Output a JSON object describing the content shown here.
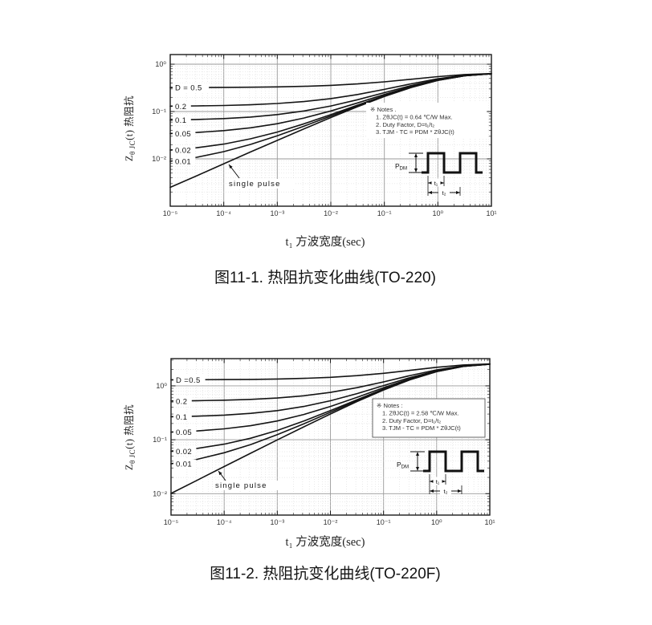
{
  "figures": [
    {
      "caption": "图11-1. 热阻抗变化曲线(TO-220)",
      "x_axis_title": "t₁ 方波宽度(sec)",
      "y_axis_title_prefix": "Z",
      "y_axis_title_sub": "θ JC",
      "y_axis_title_suffix": "(t) 热阻抗"
    },
    {
      "caption": "图11-2. 热阻抗变化曲线(TO-220F)",
      "x_axis_title": "t₁ 方波宽度(sec)",
      "y_axis_title_prefix": "Z",
      "y_axis_title_sub": "θ JC",
      "y_axis_title_suffix": "(t) 热阻抗"
    }
  ],
  "chart_data": [
    {
      "type": "line",
      "title": "图11-1. 热阻抗变化曲线(TO-220)",
      "xlabel": "t₁ 方波宽度(sec)",
      "ylabel": "ZθJC(t) 热阻抗",
      "x_scale": "log",
      "y_scale": "log",
      "xlim": [
        1e-05,
        10
      ],
      "ylim": [
        0.001,
        1.6
      ],
      "grid": true,
      "legend": "inline curve labels at left edge",
      "rth_max_c_per_w": 0.64,
      "x_tick_values": [
        1e-05,
        0.0001,
        0.001,
        0.01,
        0.1,
        1,
        10
      ],
      "x_tick_labels": [
        "10⁻⁵",
        "10⁻⁴",
        "10⁻³",
        "10⁻²",
        "10⁻¹",
        "10⁰",
        "10¹"
      ],
      "y_tick_values": [
        1,
        0.1,
        0.01
      ],
      "y_tick_labels": [
        "10⁰",
        "10⁻¹",
        "10⁻²"
      ],
      "x": [
        1e-05,
        3.16e-05,
        0.0001,
        0.000316,
        0.001,
        0.00316,
        0.01,
        0.0316,
        0.1,
        0.316,
        1,
        3.16,
        10
      ],
      "series": [
        {
          "name": "D = 0.5",
          "duty": 0.5,
          "values": [
            0.3213,
            0.3222,
            0.3239,
            0.327,
            0.3323,
            0.3416,
            0.3573,
            0.3833,
            0.4238,
            0.4807,
            0.5474,
            0.6047,
            0.6337
          ]
        },
        {
          "name": "0.2",
          "duty": 0.2,
          "values": [
            0.13,
            0.1316,
            0.1343,
            0.1392,
            0.1477,
            0.1625,
            0.1877,
            0.2293,
            0.2941,
            0.3851,
            0.4919,
            0.5836,
            0.6299
          ]
        },
        {
          "name": "0.1",
          "duty": 0.1,
          "values": [
            0.0663,
            0.068,
            0.0711,
            0.0766,
            0.0862,
            0.1028,
            0.1312,
            0.178,
            0.2509,
            0.3532,
            0.4734,
            0.5765,
            0.6286
          ]
        },
        {
          "name": "0.05",
          "duty": 0.05,
          "values": [
            0.0344,
            0.0362,
            0.0395,
            0.0453,
            0.0554,
            0.073,
            0.1029,
            0.1523,
            0.2293,
            0.3373,
            0.4641,
            0.573,
            0.628
          ]
        },
        {
          "name": "0.02",
          "duty": 0.02,
          "values": [
            0.0153,
            0.0172,
            0.0205,
            0.0265,
            0.0369,
            0.0551,
            0.086,
            0.1369,
            0.2163,
            0.3277,
            0.4586,
            0.5709,
            0.6276
          ]
        },
        {
          "name": "0.01",
          "duty": 0.01,
          "values": [
            0.0089,
            0.0108,
            0.0142,
            0.0202,
            0.0308,
            0.0491,
            0.0803,
            0.1318,
            0.212,
            0.3245,
            0.4567,
            0.5702,
            0.6274
          ]
        },
        {
          "name": "single pulse",
          "duty": null,
          "values": [
            0.0025,
            0.0044,
            0.0079,
            0.014,
            0.0246,
            0.0431,
            0.0747,
            0.1267,
            0.2077,
            0.3214,
            0.4549,
            0.5695,
            0.6273
          ]
        }
      ],
      "notes": [
        "※  Notes .",
        "1. ZθJC(t) = 0.64 ℃/W Max.",
        "2. Duty Factor, D=t₁/t₂",
        "3. TJM - TC = PDM * ZθJC(t)"
      ],
      "waveform": {
        "amplitude_label": "P",
        "amplitude_sub": "DM",
        "t1_label": "t₁",
        "t2_label": "t₂"
      }
    },
    {
      "type": "line",
      "title": "图11-2. 热阻抗变化曲线(TO-220F)",
      "xlabel": "t₁ 方波宽度(sec)",
      "ylabel": "ZθJC(t) 热阻抗",
      "x_scale": "log",
      "y_scale": "log",
      "xlim": [
        1e-05,
        10
      ],
      "ylim": [
        0.004,
        3.2
      ],
      "grid": true,
      "legend": "inline curve labels at left edge",
      "rth_max_c_per_w": 2.58,
      "x_tick_values": [
        1e-05,
        0.0001,
        0.001,
        0.01,
        0.1,
        1,
        10
      ],
      "x_tick_labels": [
        "10⁻⁵",
        "10⁻⁴",
        "10⁻³",
        "10⁻²",
        "10⁻¹",
        "10⁰",
        "10¹"
      ],
      "y_tick_values": [
        1,
        0.1,
        0.01
      ],
      "y_tick_labels": [
        "10⁰",
        "10⁻¹",
        "10⁻²"
      ],
      "x": [
        1e-05,
        3.16e-05,
        0.0001,
        0.000316,
        0.001,
        0.00316,
        0.01,
        0.0316,
        0.1,
        0.316,
        1,
        3.16,
        10
      ],
      "series": [
        {
          "name": "D =0.5",
          "duty": 0.5,
          "values": [
            1.295,
            1.299,
            1.3059,
            1.3181,
            1.3396,
            1.3769,
            1.4405,
            1.5453,
            1.7085,
            1.9377,
            2.2068,
            2.4378,
            2.5545
          ]
        },
        {
          "name": "0.2",
          "duty": 0.2,
          "values": [
            0.5241,
            0.5303,
            0.5414,
            0.561,
            0.5954,
            0.655,
            0.7568,
            0.9245,
            1.1857,
            1.5524,
            1.9829,
            2.3525,
            2.5392
          ]
        },
        {
          "name": "0.1",
          "duty": 0.1,
          "values": [
            0.2671,
            0.2741,
            0.2866,
            0.3086,
            0.3473,
            0.4144,
            0.5289,
            0.7175,
            1.0114,
            1.4239,
            1.9083,
            2.3241,
            2.5341
          ]
        },
        {
          "name": "0.05",
          "duty": 0.05,
          "values": [
            0.1386,
            0.146,
            0.1592,
            0.1825,
            0.2233,
            0.2941,
            0.4149,
            0.6141,
            0.9242,
            1.3597,
            1.8709,
            2.3099,
            2.5315
          ]
        },
        {
          "name": "0.02",
          "duty": 0.02,
          "values": [
            0.0615,
            0.0692,
            0.0828,
            0.1068,
            0.1489,
            0.2219,
            0.3465,
            0.552,
            0.872,
            1.3212,
            1.8485,
            2.3013,
            2.53
          ]
        },
        {
          "name": "0.01",
          "duty": 0.01,
          "values": [
            0.0358,
            0.0435,
            0.0573,
            0.0815,
            0.124,
            0.1978,
            0.3237,
            0.5313,
            0.8545,
            1.3083,
            1.8411,
            2.2985,
            2.5295
          ]
        },
        {
          "name": "single pulse",
          "duty": null,
          "values": [
            0.0101,
            0.0179,
            0.0318,
            0.0563,
            0.0992,
            0.1738,
            0.301,
            0.5106,
            0.8371,
            1.2955,
            1.8336,
            2.2956,
            2.529
          ]
        }
      ],
      "notes": [
        "※  Notes :",
        "1. ZθJC(t) = 2.58 ℃/W Max.",
        "2. Duty Factor, D=t₁/t₂",
        "3. TJM - TC = PDM * ZθJC(t)"
      ],
      "waveform": {
        "amplitude_label": "P",
        "amplitude_sub": "DM",
        "t1_label": "t₁",
        "t2_label": "t₂"
      }
    }
  ]
}
